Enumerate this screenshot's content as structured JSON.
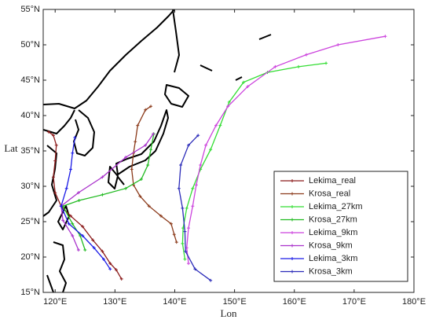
{
  "chart_data": {
    "type": "line",
    "x_label": "Lon",
    "y_label": "Lat",
    "xlim": [
      118,
      180
    ],
    "xticks": [
      {
        "value": 120,
        "label": "120°E"
      },
      {
        "value": 130,
        "label": "130°E"
      },
      {
        "value": 140,
        "label": "140°E"
      },
      {
        "value": 150,
        "label": "150°E"
      },
      {
        "value": 160,
        "label": "160°E"
      },
      {
        "value": 170,
        "label": "170°E"
      },
      {
        "value": 180,
        "label": "180°E"
      }
    ],
    "ylim": [
      15,
      55
    ],
    "yticks": [
      {
        "value": 15,
        "label": "15°N"
      },
      {
        "value": 20,
        "label": "20°N"
      },
      {
        "value": 25,
        "label": "25°N"
      },
      {
        "value": 30,
        "label": "30°N"
      },
      {
        "value": 35,
        "label": "35°N"
      },
      {
        "value": 40,
        "label": "40°N"
      },
      {
        "value": 45,
        "label": "45°N"
      },
      {
        "value": 50,
        "label": "50°N"
      },
      {
        "value": 55,
        "label": "55°N"
      }
    ],
    "legend": "lower right",
    "series": [
      {
        "name": "Lekima_real",
        "color": "#8b1a1a",
        "x": [
          131.1,
          130.2,
          129.2,
          127.9,
          126.3,
          124.6,
          122.6,
          121.0,
          120.0,
          119.7,
          120.0,
          120.2,
          119.7,
          118.9
        ],
        "values": [
          16.9,
          18.2,
          19.1,
          20.8,
          22.4,
          24.3,
          25.8,
          27.2,
          29.1,
          31.3,
          33.6,
          35.8,
          37.2,
          37.7
        ]
      },
      {
        "name": "Krosa_real",
        "color": "#8b3a1a",
        "x": [
          140.3,
          139.9,
          139.4,
          137.7,
          135.7,
          134.2,
          133.1,
          132.8,
          133.1,
          133.4,
          133.8,
          135.1,
          136.0
        ],
        "values": [
          22.1,
          23.2,
          24.7,
          25.8,
          27.2,
          28.6,
          30.2,
          32.4,
          34.7,
          36.3,
          38.6,
          40.8,
          41.3
        ]
      },
      {
        "name": "Lekima_27km",
        "color": "#33dd33",
        "x": [
          141.7,
          141.3,
          141.4,
          142.0,
          143.0,
          144.3,
          146.0,
          147.6,
          149.1,
          151.5,
          155.5,
          160.7,
          165.3
        ],
        "values": [
          19.7,
          21.9,
          24.1,
          26.9,
          29.7,
          32.4,
          35.2,
          38.6,
          41.9,
          44.7,
          46.1,
          46.9,
          47.4
        ]
      },
      {
        "name": "Krosa_27km",
        "color": "#22bb22",
        "x": [
          125.0,
          124.2,
          122.9,
          121.3,
          124.0,
          127.9,
          131.8,
          134.4,
          135.5,
          136.0,
          136.5
        ],
        "values": [
          21.0,
          23.0,
          24.7,
          27.2,
          28.0,
          28.8,
          29.7,
          31.0,
          33.0,
          35.2,
          37.4
        ]
      },
      {
        "name": "Lekima_9km",
        "color": "#cc44dd",
        "x": [
          142.3,
          142.0,
          142.3,
          143.0,
          143.6,
          144.3,
          145.2,
          146.9,
          148.9,
          152.2,
          156.8,
          162.0,
          167.3,
          175.2
        ],
        "values": [
          19.1,
          21.3,
          24.1,
          27.2,
          30.2,
          33.0,
          35.8,
          38.6,
          41.3,
          44.1,
          46.9,
          48.6,
          50.0,
          51.2
        ]
      },
      {
        "name": "Krosa_9km",
        "color": "#aa33cc",
        "x": [
          123.9,
          122.9,
          121.3,
          121.0,
          123.9,
          127.9,
          131.8,
          135.1,
          136.4
        ],
        "values": [
          21.0,
          23.0,
          25.2,
          27.2,
          29.1,
          31.3,
          34.1,
          35.8,
          37.4
        ]
      },
      {
        "name": "Lekima_3km",
        "color": "#1a1ae6",
        "x": [
          129.2,
          128.1,
          126.5,
          124.6,
          122.3,
          121.0,
          121.9,
          122.6,
          122.9,
          123.3
        ],
        "values": [
          18.3,
          19.7,
          21.3,
          23.0,
          24.7,
          27.2,
          29.7,
          32.4,
          34.7,
          36.9
        ]
      },
      {
        "name": "Krosa_3km",
        "color": "#2a2ab8",
        "x": [
          146.0,
          143.4,
          141.8,
          141.7,
          141.3,
          140.7,
          141.0,
          142.3,
          143.9
        ],
        "values": [
          16.7,
          18.3,
          20.8,
          23.6,
          26.9,
          29.7,
          33.0,
          35.8,
          37.2
        ]
      }
    ]
  }
}
